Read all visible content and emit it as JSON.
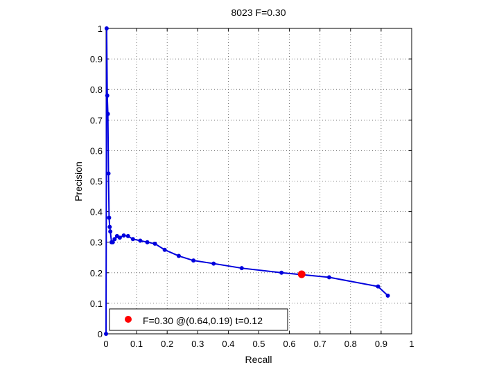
{
  "chart_data": {
    "type": "line",
    "title": "8023 F=0.30",
    "xlabel": "Recall",
    "ylabel": "Precision",
    "xlim": [
      0,
      1
    ],
    "ylim": [
      0,
      1
    ],
    "grid": true,
    "xticks": [
      "0",
      "0.1",
      "0.2",
      "0.3",
      "0.4",
      "0.5",
      "0.6",
      "0.7",
      "0.8",
      "0.9",
      "1"
    ],
    "yticks": [
      "0",
      "0.1",
      "0.2",
      "0.3",
      "0.4",
      "0.5",
      "0.6",
      "0.7",
      "0.8",
      "0.9",
      "1"
    ],
    "series": [
      {
        "color": "#0000dd",
        "x": [
          0.0,
          0.002,
          0.004,
          0.006,
          0.008,
          0.01,
          0.012,
          0.014,
          0.018,
          0.022,
          0.028,
          0.036,
          0.045,
          0.058,
          0.072,
          0.088,
          0.112,
          0.135,
          0.16,
          0.192,
          0.238,
          0.286,
          0.352,
          0.444,
          0.574,
          0.73,
          0.89,
          0.922
        ],
        "y": [
          0.0,
          1.0,
          0.78,
          0.72,
          0.525,
          0.38,
          0.35,
          0.335,
          0.3,
          0.3,
          0.31,
          0.32,
          0.315,
          0.322,
          0.32,
          0.31,
          0.305,
          0.3,
          0.295,
          0.275,
          0.255,
          0.24,
          0.23,
          0.215,
          0.2,
          0.185,
          0.155,
          0.125
        ]
      }
    ],
    "best_point": {
      "x": 0.64,
      "y": 0.195,
      "color": "#ff0000"
    },
    "legend": {
      "placement": "bottom-left",
      "label": "F=0.30 @(0.64,0.19) t=0.12"
    }
  }
}
